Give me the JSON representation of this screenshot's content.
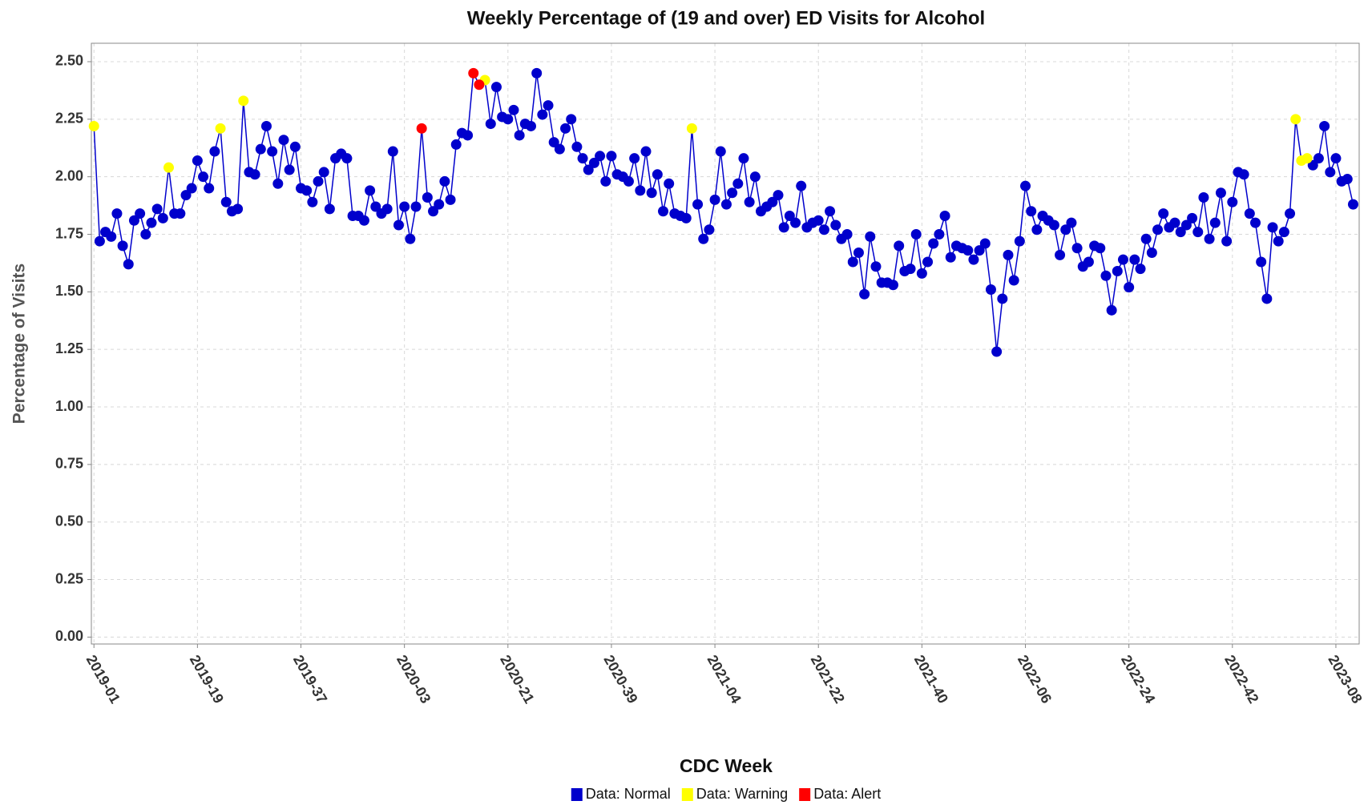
{
  "chart_data": {
    "type": "line",
    "title": "Weekly Percentage of (19 and over) ED Visits for Alcohol",
    "x_label": "CDC Week",
    "y_label": "Percentage of Visits",
    "categories": [
      "2019-01",
      null,
      null,
      null,
      null,
      null,
      null,
      null,
      null,
      null,
      null,
      null,
      null,
      null,
      null,
      null,
      null,
      null,
      "2019-19",
      null,
      null,
      null,
      null,
      null,
      null,
      null,
      null,
      null,
      null,
      null,
      null,
      null,
      null,
      null,
      null,
      null,
      "2019-37",
      null,
      null,
      null,
      null,
      null,
      null,
      null,
      null,
      null,
      null,
      null,
      null,
      null,
      null,
      null,
      null,
      null,
      "2020-03",
      null,
      null,
      null,
      null,
      null,
      null,
      null,
      null,
      null,
      null,
      null,
      null,
      null,
      null,
      null,
      null,
      null,
      "2020-21",
      null,
      null,
      null,
      null,
      null,
      null,
      null,
      null,
      null,
      null,
      null,
      null,
      null,
      null,
      null,
      null,
      null,
      "2020-39",
      null,
      null,
      null,
      null,
      null,
      null,
      null,
      null,
      null,
      null,
      null,
      null,
      null,
      null,
      null,
      null,
      null,
      "2021-04",
      null,
      null,
      null,
      null,
      null,
      null,
      null,
      null,
      null,
      null,
      null,
      null,
      null,
      null,
      null,
      null,
      null,
      "2021-22",
      null,
      null,
      null,
      null,
      null,
      null,
      null,
      null,
      null,
      null,
      null,
      null,
      null,
      null,
      null,
      null,
      null,
      "2021-40",
      null,
      null,
      null,
      null,
      null,
      null,
      null,
      null,
      null,
      null,
      null,
      null,
      null,
      null,
      null,
      null,
      null,
      "2022-06",
      null,
      null,
      null,
      null,
      null,
      null,
      null,
      null,
      null,
      null,
      null,
      null,
      null,
      null,
      null,
      null,
      null,
      "2022-24",
      null,
      null,
      null,
      null,
      null,
      null,
      null,
      null,
      null,
      null,
      null,
      null,
      null,
      null,
      null,
      null,
      null,
      "2022-42",
      null,
      null,
      null,
      null,
      null,
      null,
      null,
      null,
      null,
      null,
      null,
      null,
      null,
      null,
      null,
      null,
      null,
      "2023-08",
      null,
      null,
      null
    ],
    "series": [
      {
        "name": "Data: Normal",
        "color": "#0000cc",
        "values": [
          null,
          1.72,
          1.76,
          1.74,
          1.84,
          1.7,
          1.62,
          1.81,
          1.84,
          1.75,
          1.8,
          1.86,
          1.82,
          null,
          1.84,
          1.84,
          1.92,
          1.95,
          2.07,
          2.0,
          1.95,
          2.11,
          null,
          1.89,
          1.85,
          1.86,
          null,
          2.02,
          2.01,
          2.12,
          2.22,
          2.11,
          1.97,
          2.16,
          2.03,
          2.13,
          1.95,
          1.94,
          1.89,
          1.98,
          2.02,
          1.86,
          2.08,
          2.1,
          2.08,
          1.83,
          1.83,
          1.81,
          1.94,
          1.87,
          1.84,
          1.86,
          2.11,
          1.79,
          1.87,
          1.73,
          1.87,
          null,
          1.91,
          1.85,
          1.88,
          1.98,
          1.9,
          2.14,
          2.19,
          2.18,
          null,
          null,
          null,
          2.23,
          2.39,
          2.26,
          2.25,
          2.29,
          2.18,
          2.23,
          2.22,
          2.45,
          2.27,
          2.31,
          2.15,
          2.12,
          2.21,
          2.25,
          2.13,
          2.08,
          2.03,
          2.06,
          2.09,
          1.98,
          2.09,
          2.01,
          2.0,
          1.98,
          2.08,
          1.94,
          2.11,
          1.93,
          2.01,
          1.85,
          1.97,
          1.84,
          1.83,
          1.82,
          null,
          1.88,
          1.73,
          1.77,
          1.9,
          2.11,
          1.88,
          1.93,
          1.97,
          2.08,
          1.89,
          2.0,
          1.85,
          1.87,
          1.89,
          1.92,
          1.78,
          1.83,
          1.8,
          1.96,
          1.78,
          1.8,
          1.81,
          1.77,
          1.85,
          1.79,
          1.73,
          1.75,
          1.63,
          1.67,
          1.49,
          1.74,
          1.61,
          1.54,
          1.54,
          1.53,
          1.7,
          1.59,
          1.6,
          1.75,
          1.58,
          1.63,
          1.71,
          1.75,
          1.83,
          1.65,
          1.7,
          1.69,
          1.68,
          1.64,
          1.68,
          1.71,
          1.51,
          1.24,
          1.47,
          1.66,
          1.55,
          1.72,
          1.96,
          1.85,
          1.77,
          1.83,
          1.81,
          1.79,
          1.66,
          1.77,
          1.8,
          1.69,
          1.61,
          1.63,
          1.7,
          1.69,
          1.57,
          1.42,
          1.59,
          1.64,
          1.52,
          1.64,
          1.6,
          1.73,
          1.67,
          1.77,
          1.84,
          1.78,
          1.8,
          1.76,
          1.79,
          1.82,
          1.76,
          1.91,
          1.73,
          1.8,
          1.93,
          1.72,
          1.89,
          2.02,
          2.01,
          1.84,
          1.8,
          1.63,
          1.47,
          1.78,
          1.72,
          1.76,
          1.84,
          null,
          null,
          null,
          2.05,
          2.08,
          2.22,
          2.02,
          2.08,
          1.98,
          1.99,
          1.88
        ]
      },
      {
        "name": "Data: Warning",
        "color": "#ffff00",
        "values": [
          2.22,
          null,
          null,
          null,
          null,
          null,
          null,
          null,
          null,
          null,
          null,
          null,
          null,
          2.04,
          null,
          null,
          null,
          null,
          null,
          null,
          null,
          null,
          2.21,
          null,
          null,
          null,
          2.33,
          null,
          null,
          null,
          null,
          null,
          null,
          null,
          null,
          null,
          null,
          null,
          null,
          null,
          null,
          null,
          null,
          null,
          null,
          null,
          null,
          null,
          null,
          null,
          null,
          null,
          null,
          null,
          null,
          null,
          null,
          null,
          null,
          null,
          null,
          null,
          null,
          null,
          null,
          null,
          null,
          null,
          2.42,
          null,
          null,
          null,
          null,
          null,
          null,
          null,
          null,
          null,
          null,
          null,
          null,
          null,
          null,
          null,
          null,
          null,
          null,
          null,
          null,
          null,
          null,
          null,
          null,
          null,
          null,
          null,
          null,
          null,
          null,
          null,
          null,
          null,
          null,
          null,
          2.21,
          null,
          null,
          null,
          null,
          null,
          null,
          null,
          null,
          null,
          null,
          null,
          null,
          null,
          null,
          null,
          null,
          null,
          null,
          null,
          null,
          null,
          null,
          null,
          null,
          null,
          null,
          null,
          null,
          null,
          null,
          null,
          null,
          null,
          null,
          null,
          null,
          null,
          null,
          null,
          null,
          null,
          null,
          null,
          null,
          null,
          null,
          null,
          null,
          null,
          null,
          null,
          null,
          null,
          null,
          null,
          null,
          null,
          null,
          null,
          null,
          null,
          null,
          null,
          null,
          null,
          null,
          null,
          null,
          null,
          null,
          null,
          null,
          null,
          null,
          null,
          null,
          null,
          null,
          null,
          null,
          null,
          null,
          null,
          null,
          null,
          null,
          null,
          null,
          null,
          null,
          null,
          null,
          null,
          null,
          null,
          null,
          null,
          null,
          null,
          null,
          null,
          null,
          null,
          null,
          2.25,
          2.07,
          2.08,
          null,
          null,
          null,
          null,
          null,
          null,
          null,
          null
        ]
      },
      {
        "name": "Data: Alert",
        "color": "#ff0000",
        "values": [
          null,
          null,
          null,
          null,
          null,
          null,
          null,
          null,
          null,
          null,
          null,
          null,
          null,
          null,
          null,
          null,
          null,
          null,
          null,
          null,
          null,
          null,
          null,
          null,
          null,
          null,
          null,
          null,
          null,
          null,
          null,
          null,
          null,
          null,
          null,
          null,
          null,
          null,
          null,
          null,
          null,
          null,
          null,
          null,
          null,
          null,
          null,
          null,
          null,
          null,
          null,
          null,
          null,
          null,
          null,
          null,
          null,
          2.21,
          null,
          null,
          null,
          null,
          null,
          null,
          null,
          null,
          2.45,
          2.4,
          null,
          null,
          null,
          null,
          null,
          null,
          null,
          null,
          null,
          null,
          null,
          null,
          null,
          null,
          null,
          null,
          null,
          null,
          null,
          null,
          null,
          null,
          null,
          null,
          null,
          null,
          null,
          null,
          null,
          null,
          null,
          null,
          null,
          null,
          null,
          null,
          null,
          null,
          null,
          null,
          null,
          null,
          null,
          null,
          null,
          null,
          null,
          null,
          null,
          null,
          null,
          null,
          null,
          null,
          null,
          null,
          null,
          null,
          null,
          null,
          null,
          null,
          null,
          null,
          null,
          null,
          null,
          null,
          null,
          null,
          null,
          null,
          null,
          null,
          null,
          null,
          null,
          null,
          null,
          null,
          null,
          null,
          null,
          null,
          null,
          null,
          null,
          null,
          null,
          null,
          null,
          null,
          null,
          null,
          null,
          null,
          null,
          null,
          null,
          null,
          null,
          null,
          null,
          null,
          null,
          null,
          null,
          null,
          null,
          null,
          null,
          null,
          null,
          null,
          null,
          null,
          null,
          null,
          null,
          null,
          null,
          null,
          null,
          null,
          null,
          null,
          null,
          null,
          null,
          null,
          null,
          null,
          null,
          null,
          null,
          null,
          null,
          null,
          null,
          null,
          null,
          null,
          null,
          null,
          null,
          null,
          null,
          null,
          null,
          null,
          null,
          null
        ]
      }
    ],
    "ylim": [
      -0.03,
      2.58
    ],
    "yticks": [
      {
        "value": 0,
        "label": "0.00"
      },
      {
        "value": 0.25,
        "label": "0.25"
      },
      {
        "value": 0.5,
        "label": "0.50"
      },
      {
        "value": 0.75,
        "label": "0.75"
      },
      {
        "value": 1,
        "label": "1.00"
      },
      {
        "value": 1.25,
        "label": "1.25"
      },
      {
        "value": 1.5,
        "label": "1.50"
      },
      {
        "value": 1.75,
        "label": "1.75"
      },
      {
        "value": 2,
        "label": "2.00"
      },
      {
        "value": 2.25,
        "label": "2.25"
      },
      {
        "value": 2.5,
        "label": "2.50"
      }
    ],
    "grid": true,
    "legend": "bottom"
  }
}
